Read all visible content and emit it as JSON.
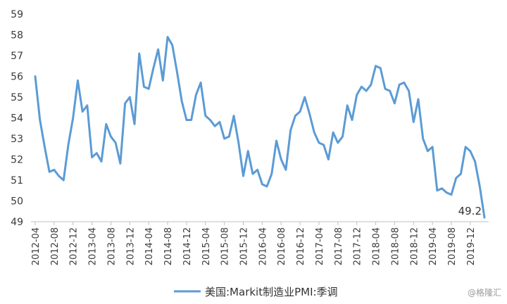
{
  "chart_data": {
    "type": "line",
    "ylim": [
      49,
      59
    ],
    "yticks": [
      49,
      50,
      51,
      52,
      53,
      54,
      55,
      56,
      57,
      58,
      59
    ],
    "xtick_labels": [
      "2012-04",
      "2012-08",
      "2012-12",
      "2013-04",
      "2013-08",
      "2013-12",
      "2014-04",
      "2014-08",
      "2014-12",
      "2015-04",
      "2015-08",
      "2015-12",
      "2016-04",
      "2016-08",
      "2016-12",
      "2017-04",
      "2017-08",
      "2017-12",
      "2018-04",
      "2018-08",
      "2018-12",
      "2019-04",
      "2019-08",
      "2019-12"
    ],
    "x_start": "2012-04",
    "legend": "top-bottom-center",
    "grid": false,
    "color": "#5b9bd5",
    "series": [
      {
        "name": "美国:Markit制造业PMI:季调",
        "values": [
          56.0,
          53.9,
          52.6,
          51.4,
          51.5,
          51.2,
          51.0,
          52.7,
          54.0,
          55.8,
          54.3,
          54.6,
          52.1,
          52.3,
          51.9,
          53.7,
          53.1,
          52.8,
          51.8,
          54.7,
          55.0,
          53.7,
          57.1,
          55.5,
          55.4,
          56.4,
          57.3,
          55.8,
          57.9,
          57.5,
          56.2,
          54.8,
          53.9,
          53.9,
          55.1,
          55.7,
          54.1,
          53.9,
          53.6,
          53.8,
          53.0,
          53.1,
          54.1,
          52.8,
          51.2,
          52.4,
          51.3,
          51.5,
          50.8,
          50.7,
          51.3,
          52.9,
          52.0,
          51.5,
          53.4,
          54.1,
          54.3,
          55.0,
          54.2,
          53.3,
          52.8,
          52.7,
          52.0,
          53.3,
          52.8,
          53.1,
          54.6,
          53.9,
          55.1,
          55.5,
          55.3,
          55.6,
          56.5,
          56.4,
          55.4,
          55.3,
          54.7,
          55.6,
          55.7,
          55.3,
          53.8,
          54.9,
          53.0,
          52.4,
          52.6,
          50.5,
          50.6,
          50.4,
          50.3,
          51.1,
          51.3,
          52.6,
          52.4,
          51.9,
          50.7,
          49.2
        ]
      }
    ],
    "annotations": [
      {
        "text": "49.2"
      }
    ]
  },
  "watermark": "@格隆汇"
}
